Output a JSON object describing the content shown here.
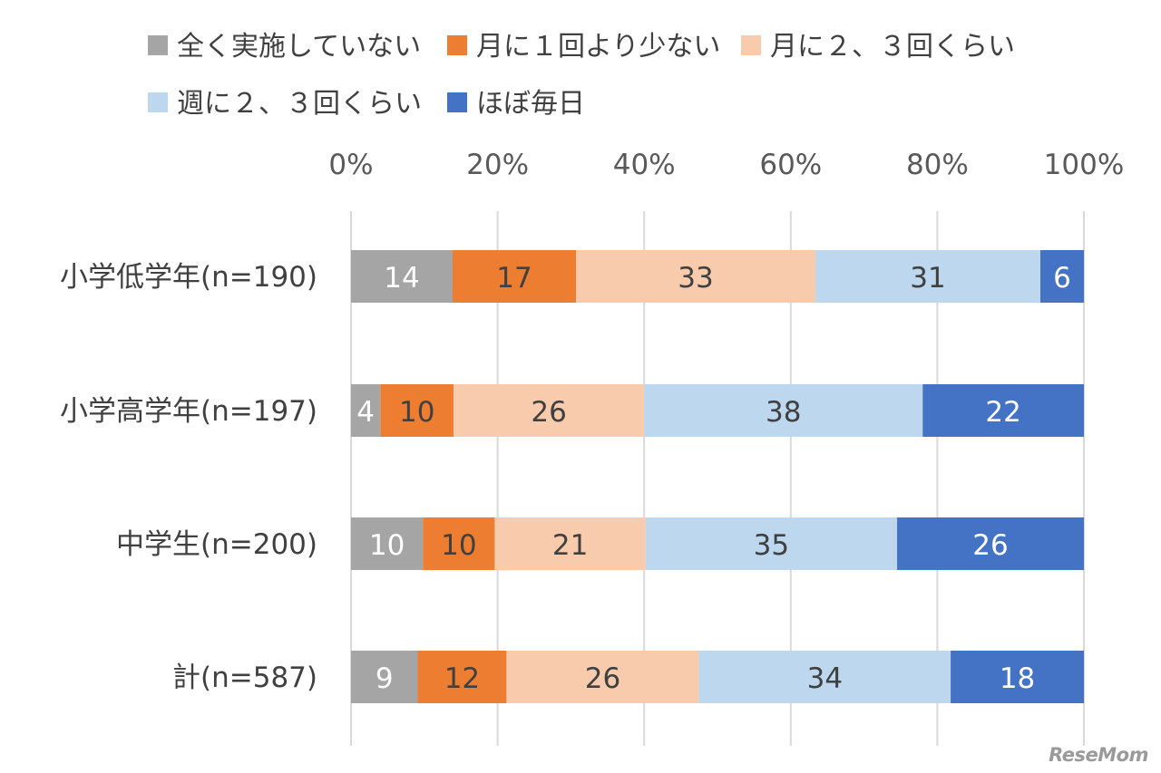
{
  "chart_data": {
    "type": "bar",
    "orientation": "horizontal",
    "stacked": "percent",
    "title": "",
    "xlabel": "",
    "ylabel": "",
    "xlim": [
      0,
      100
    ],
    "ticks": [
      "0%",
      "20%",
      "40%",
      "60%",
      "80%",
      "100%"
    ],
    "legend_position": "top",
    "categories": [
      "小学低学年(n=190)",
      "小学高学年(n=197)",
      "中学生(n=200)",
      "計(n=587)"
    ],
    "series": [
      {
        "name": "全く実施していない",
        "color": "#a5a5a5",
        "label_color": "#ffffff",
        "values": [
          14,
          4,
          10,
          9
        ]
      },
      {
        "name": "月に１回より少ない",
        "color": "#ed7d31",
        "label_color": "#404040",
        "values": [
          17,
          10,
          10,
          12
        ]
      },
      {
        "name": "月に２、３回くらい",
        "color": "#f8cbad",
        "label_color": "#404040",
        "values": [
          33,
          26,
          21,
          26
        ]
      },
      {
        "name": "週に２、３回くらい",
        "color": "#bdd7ee",
        "label_color": "#404040",
        "values": [
          31,
          38,
          35,
          34
        ]
      },
      {
        "name": "ほぼ毎日",
        "color": "#4472c4",
        "label_color": "#ffffff",
        "values": [
          6,
          22,
          26,
          18
        ]
      }
    ]
  },
  "brand": {
    "logo_text": "ReseMom"
  }
}
